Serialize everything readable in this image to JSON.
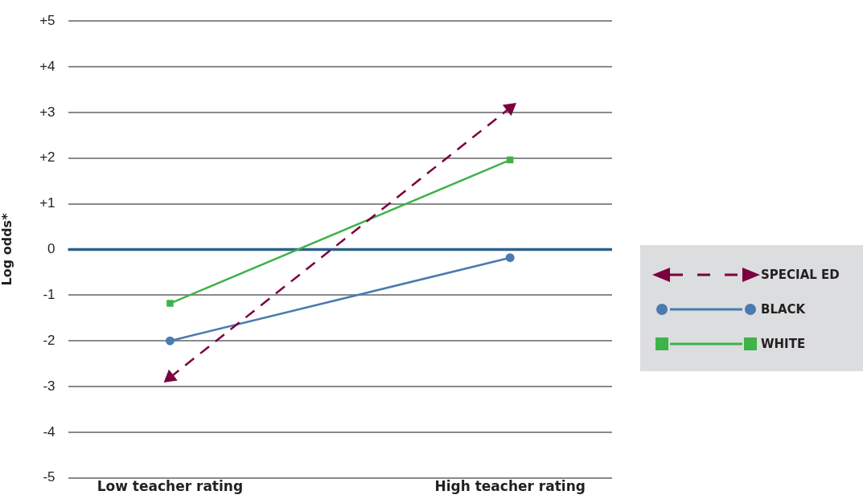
{
  "chart_data": {
    "type": "line",
    "ylabel": "Log odds*",
    "categories": [
      "Low teacher rating",
      "High teacher rating"
    ],
    "series": [
      {
        "name": "SPECIAL ED",
        "color": "#7a0040",
        "values": [
          -2.8,
          3.1
        ],
        "marker": "triangle",
        "line_style": "dashed"
      },
      {
        "name": "BLACK",
        "color": "#4a7aaf",
        "values": [
          -2.0,
          -0.18
        ],
        "marker": "circle",
        "line_style": "solid"
      },
      {
        "name": "WHITE",
        "color": "#3fb24a",
        "values": [
          -1.18,
          1.96
        ],
        "marker": "square",
        "line_style": "solid"
      }
    ],
    "ylim": [
      -5,
      5
    ],
    "yticks": [
      -5,
      -4,
      -3,
      -2,
      -1,
      0,
      {
        "value": 1,
        "label": "+1"
      },
      {
        "value": 2,
        "label": "+2"
      },
      {
        "value": 3,
        "label": "+3"
      },
      {
        "value": 4,
        "label": "+4"
      },
      {
        "value": 5,
        "label": "+5"
      }
    ],
    "grid": "y",
    "legend": "right",
    "ref_lines": [
      {
        "axis": "y",
        "value": 0,
        "color": "#2e6088"
      }
    ]
  }
}
